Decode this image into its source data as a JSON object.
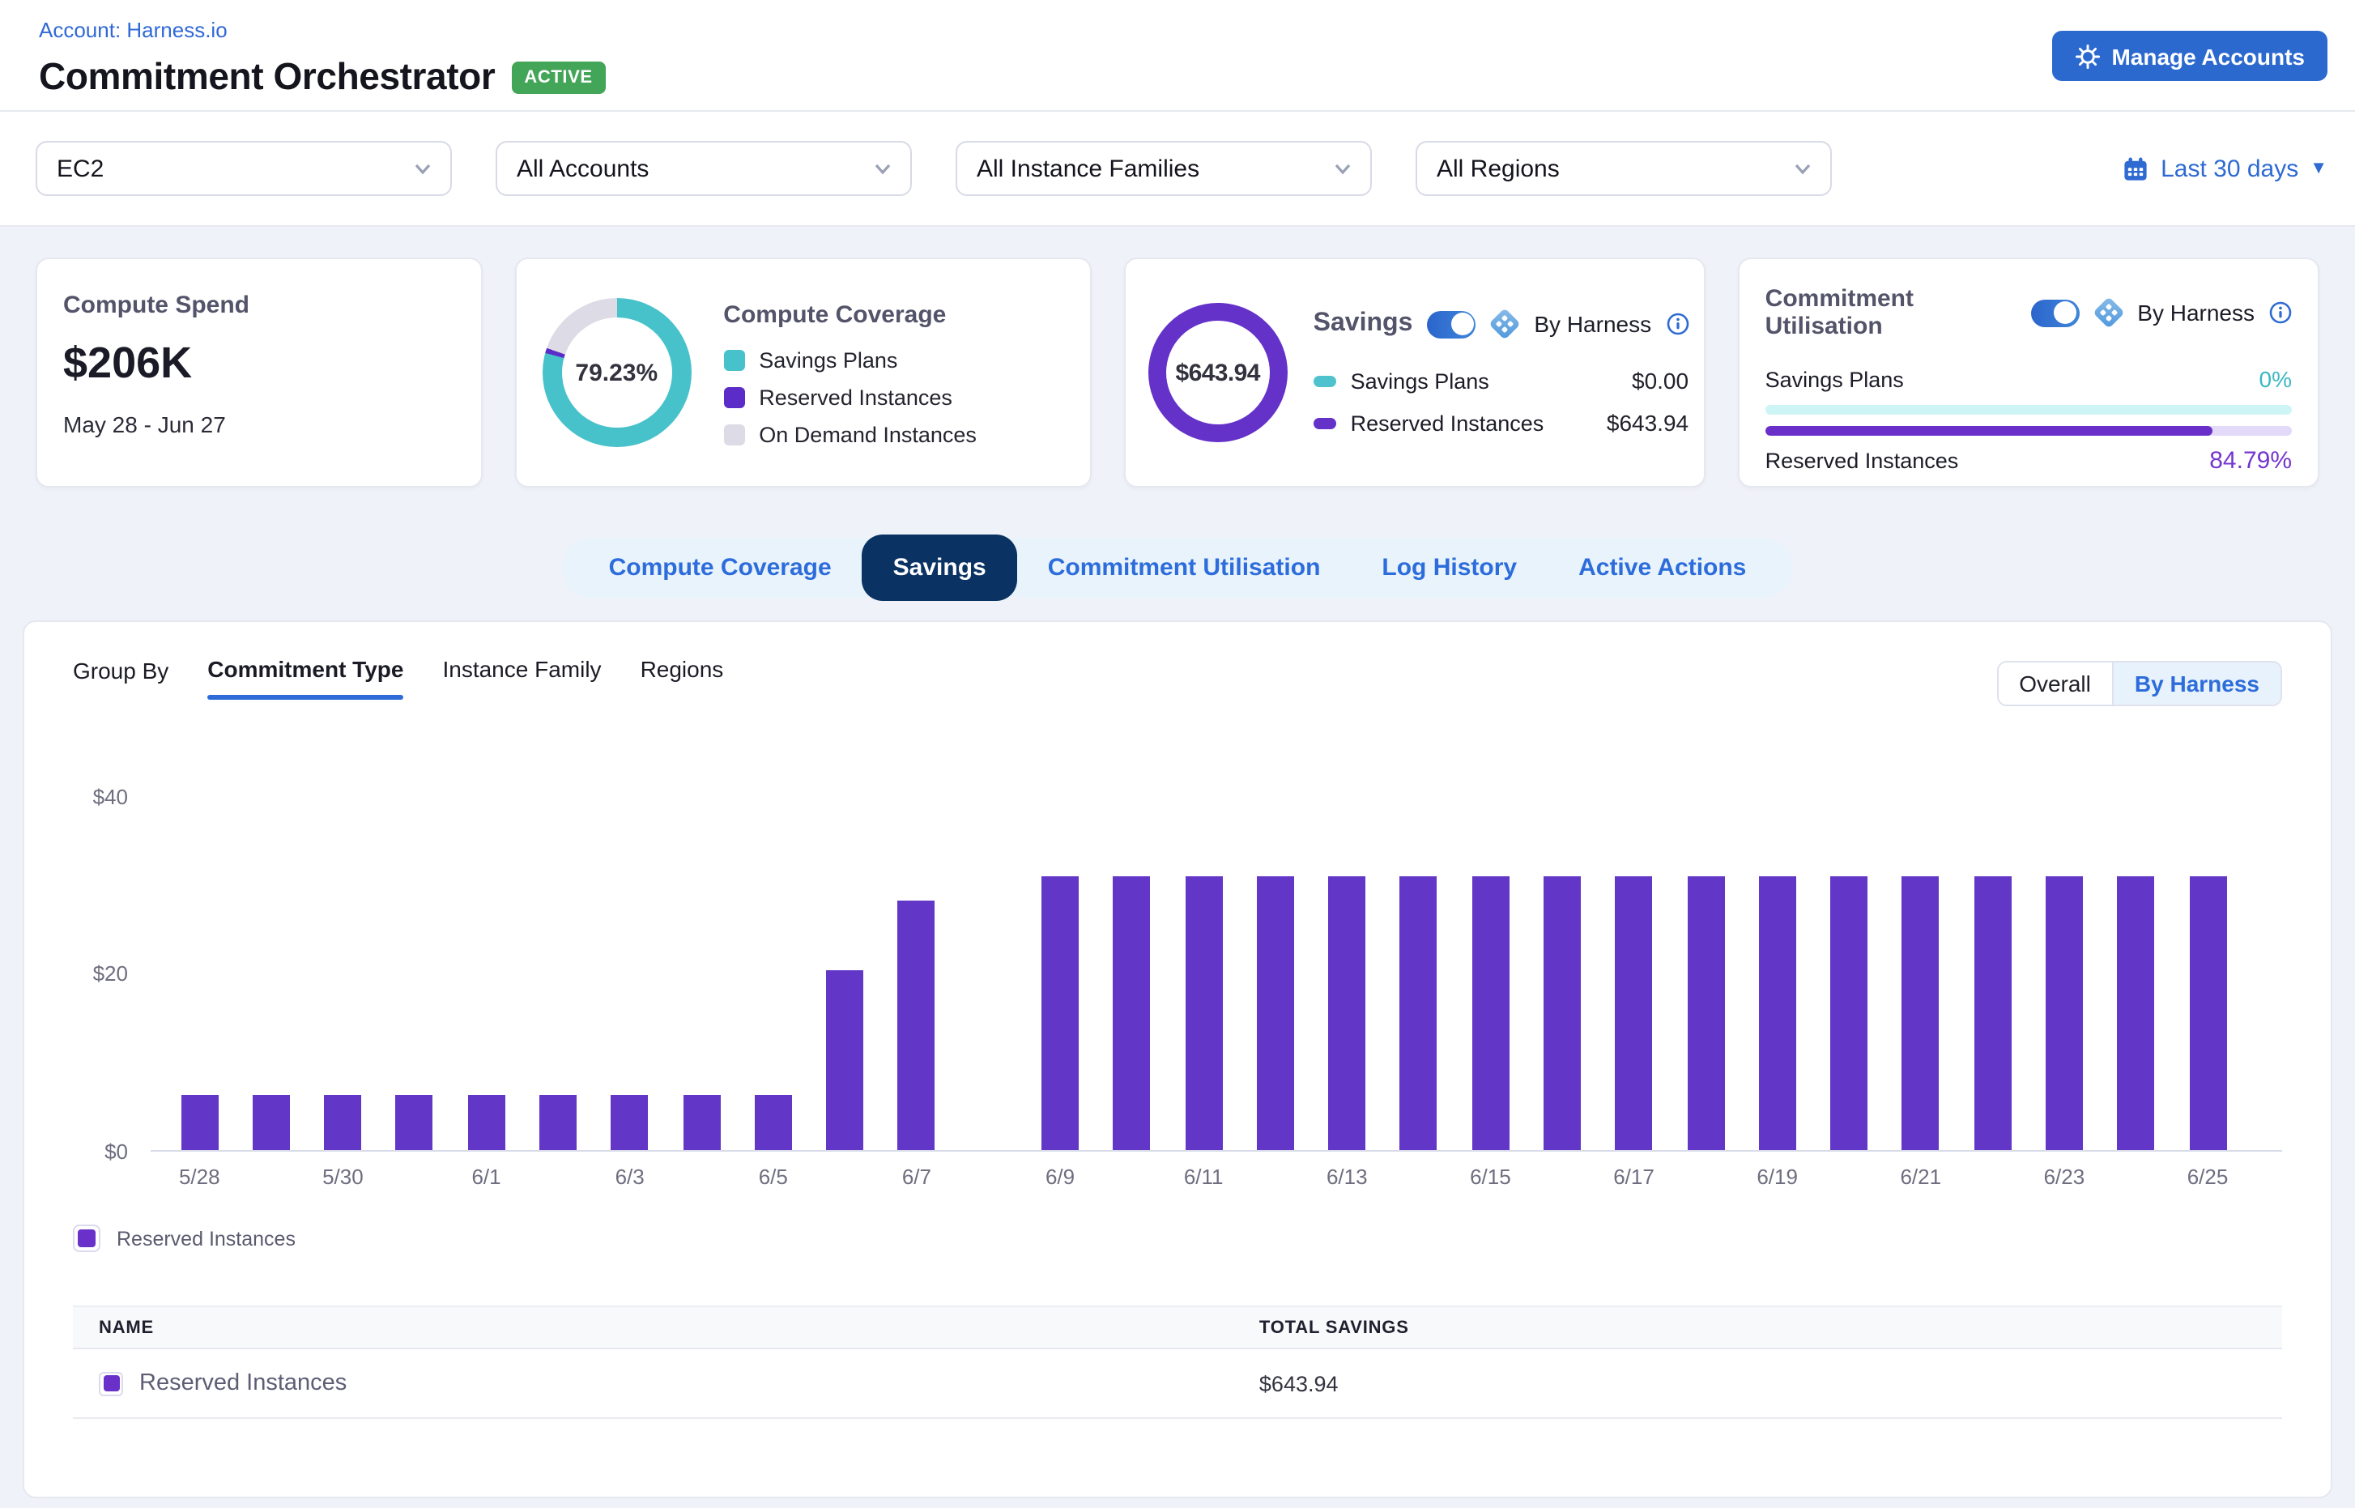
{
  "colors": {
    "accent_blue": "#2C69CF",
    "link_blue": "#3069D6",
    "active_green": "#43A557",
    "navy_active_tab": "#0A3364",
    "bar_purple": "#6236C7",
    "teal": "#47C2CB",
    "donut_gray": "#DCDBE6",
    "donut_purple": "#5C2CC9",
    "cyan_track": "#CDF5F6",
    "purple_track": "#E3D9F8",
    "purple_fill": "#6A2FC9",
    "page_bg": "#EFF2F8"
  },
  "header": {
    "account_link": "Account: Harness.io",
    "title": "Commitment Orchestrator",
    "status_badge": "ACTIVE",
    "manage_accounts_label": "Manage Accounts"
  },
  "filters": {
    "service": "EC2",
    "accounts": "All Accounts",
    "instance_families": "All Instance Families",
    "regions": "All Regions",
    "date_range": "Last 30 days"
  },
  "cards": {
    "compute_spend": {
      "title": "Compute Spend",
      "value": "$206K",
      "period": "May 28 - Jun 27"
    },
    "compute_coverage": {
      "title": "Compute Coverage",
      "percent_label": "79.23%",
      "percent": 79.23,
      "sliver_percent": 1.1,
      "legend": [
        {
          "label": "Savings Plans"
        },
        {
          "label": "Reserved Instances"
        },
        {
          "label": "On Demand Instances"
        }
      ]
    },
    "savings": {
      "title": "Savings",
      "toggle_label": "By Harness",
      "total": "$643.94",
      "rows": [
        {
          "label": "Savings Plans",
          "value": "$0.00"
        },
        {
          "label": "Reserved Instances",
          "value": "$643.94"
        }
      ]
    },
    "commitment_utilisation": {
      "title": "Commitment Utilisation",
      "toggle_label": "By Harness",
      "rows": [
        {
          "label": "Savings Plans",
          "percent_label": "0%",
          "percent": 0
        },
        {
          "label": "Reserved Instances",
          "percent_label": "84.79%",
          "percent": 84.79
        }
      ]
    }
  },
  "tabs": {
    "items": [
      "Compute Coverage",
      "Savings",
      "Commitment Utilisation",
      "Log History",
      "Active Actions"
    ],
    "active": "Savings"
  },
  "panel": {
    "group_by": {
      "label": "Group By",
      "options": [
        "Commitment Type",
        "Instance Family",
        "Regions"
      ],
      "active": "Commitment Type"
    },
    "view_toggle": {
      "options": [
        "Overall",
        "By Harness"
      ],
      "active": "By Harness"
    },
    "legend_label": "Reserved Instances",
    "table": {
      "columns": [
        "NAME",
        "TOTAL SAVINGS"
      ],
      "rows": [
        {
          "name": "Reserved Instances",
          "total_savings": "$643.94"
        }
      ]
    }
  },
  "chart_data": {
    "type": "bar",
    "title": "",
    "xlabel": "",
    "ylabel": "",
    "series": [
      {
        "name": "Reserved Instances",
        "color": "#6236C7"
      }
    ],
    "x": [
      "5/28",
      "5/29",
      "5/30",
      "5/31",
      "6/1",
      "6/2",
      "6/3",
      "6/4",
      "6/5",
      "6/6",
      "6/7",
      "6/8",
      "6/9",
      "6/10",
      "6/11",
      "6/12",
      "6/13",
      "6/14",
      "6/15",
      "6/16",
      "6/17",
      "6/18",
      "6/19",
      "6/20",
      "6/21",
      "6/22",
      "6/23",
      "6/24",
      "6/25"
    ],
    "values": [
      6.2,
      6.2,
      6.2,
      6.2,
      6.2,
      6.2,
      6.2,
      6.2,
      6.2,
      20.3,
      28.2,
      0,
      30.9,
      30.9,
      30.9,
      30.9,
      30.9,
      30.9,
      30.9,
      30.9,
      30.9,
      30.9,
      30.9,
      30.9,
      30.9,
      30.9,
      30.9,
      30.9,
      30.9
    ],
    "y_ticks": [
      {
        "label": "$0",
        "value": 0
      },
      {
        "label": "$20",
        "value": 20
      },
      {
        "label": "$40",
        "value": 40
      }
    ],
    "ylim": [
      0,
      42
    ],
    "x_tick_every": 2,
    "grid": false,
    "legend_position": "bottom"
  }
}
